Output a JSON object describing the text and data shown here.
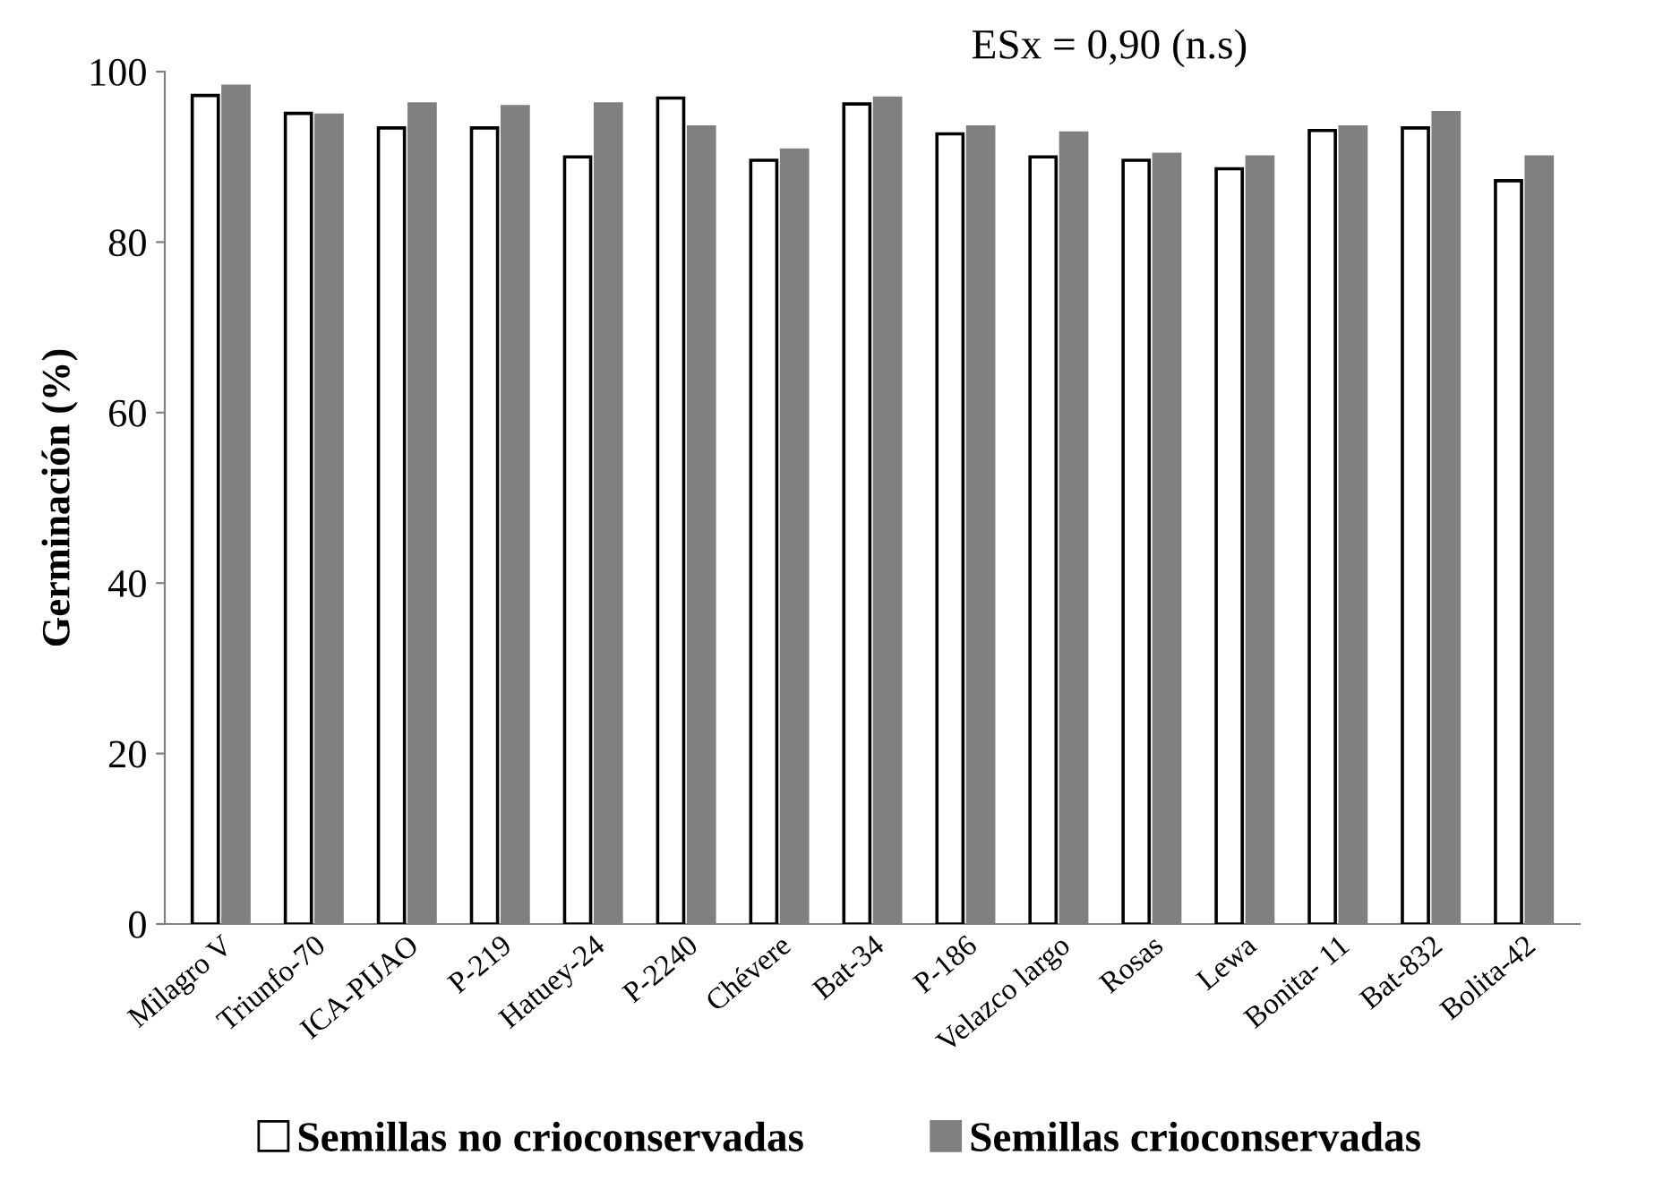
{
  "chart_data": {
    "type": "bar",
    "ylabel": "Germinación (%)",
    "categories": [
      "Milagro V",
      "Triunfo-70",
      "ICA-PIJAO",
      "P-219",
      "Hatuey-24",
      "P-2240",
      "Chévere",
      "Bat-34",
      "P-186",
      "Velazco largo",
      "Rosas",
      "Lewa",
      "Bonita- 11",
      "Bat-832",
      "Bolita-42"
    ],
    "series": [
      {
        "name": "Semillas no crioconservadas",
        "color": "#ffffff",
        "values": [
          97.2,
          95.1,
          93.4,
          93.4,
          90.0,
          96.9,
          89.6,
          96.2,
          92.7,
          90.0,
          89.6,
          88.6,
          93.1,
          93.4,
          87.2
        ]
      },
      {
        "name": "Semillas crioconservadas",
        "color": "#808080",
        "values": [
          98.3,
          94.9,
          96.2,
          95.9,
          96.2,
          93.5,
          90.8,
          96.9,
          93.5,
          92.8,
          90.3,
          90.0,
          93.5,
          95.2,
          90.0
        ]
      }
    ],
    "ylim": [
      0,
      100
    ],
    "yticks": [
      0,
      20,
      40,
      60,
      80,
      100
    ],
    "grid": false,
    "legend": "bottom",
    "annotations": [
      "ESx = 0,90 (n.s)"
    ]
  }
}
